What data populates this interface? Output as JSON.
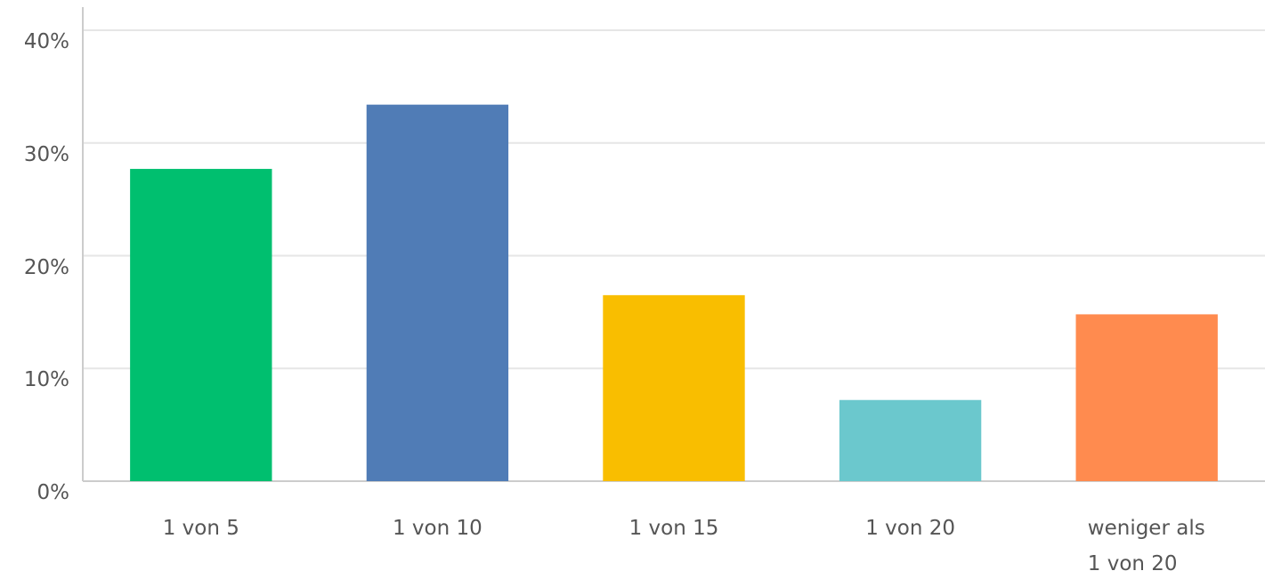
{
  "chart_data": {
    "type": "bar",
    "categories": [
      "1 von 5",
      "1 von 10",
      "1 von 15",
      "1 von 20",
      "weniger als 1 von 20"
    ],
    "values": [
      27.7,
      33.4,
      16.5,
      7.2,
      14.8
    ],
    "colors": [
      "#00bf6f",
      "#507cb6",
      "#f9be00",
      "#6bc8cd",
      "#ff8b4f"
    ],
    "ylim": [
      0,
      40
    ],
    "yticks": [
      {
        "value": 0,
        "label": "0%"
      },
      {
        "value": 10,
        "label": "10%"
      },
      {
        "value": 20,
        "label": "20%"
      },
      {
        "value": 30,
        "label": "30%"
      },
      {
        "value": 40,
        "label": "40%"
      }
    ],
    "grid": true
  }
}
